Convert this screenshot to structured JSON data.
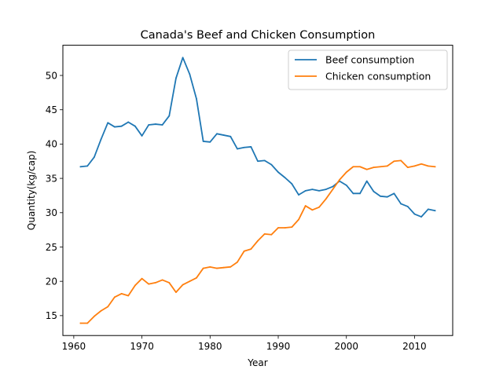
{
  "chart_data": {
    "type": "line",
    "title": "Canada's Beef and Chicken Consumption",
    "xlabel": "Year",
    "ylabel": "Quantity(kg/cap)",
    "xlim": [
      1958.4,
      2015.6
    ],
    "ylim": [
      12.1,
      54.4
    ],
    "xticks": [
      1960,
      1970,
      1980,
      1990,
      2000,
      2010
    ],
    "yticks": [
      15,
      20,
      25,
      30,
      35,
      40,
      45,
      50
    ],
    "grid": false,
    "legend_position": "top-right",
    "x": [
      1961,
      1962,
      1963,
      1964,
      1965,
      1966,
      1967,
      1968,
      1969,
      1970,
      1971,
      1972,
      1973,
      1974,
      1975,
      1976,
      1977,
      1978,
      1979,
      1980,
      1981,
      1982,
      1983,
      1984,
      1985,
      1986,
      1987,
      1988,
      1989,
      1990,
      1991,
      1992,
      1993,
      1994,
      1995,
      1996,
      1997,
      1998,
      1999,
      2000,
      2001,
      2002,
      2003,
      2004,
      2005,
      2006,
      2007,
      2008,
      2009,
      2010,
      2011,
      2012,
      2013
    ],
    "series": [
      {
        "name": "Beef consumption",
        "color": "#1f77b4",
        "values": [
          36.7,
          36.8,
          38.1,
          40.7,
          43.1,
          42.5,
          42.6,
          43.2,
          42.6,
          41.2,
          42.8,
          42.9,
          42.8,
          44.1,
          49.6,
          52.6,
          50.2,
          46.6,
          40.4,
          40.3,
          41.5,
          41.3,
          41.1,
          39.3,
          39.5,
          39.6,
          37.5,
          37.6,
          37.0,
          35.9,
          35.1,
          34.2,
          32.6,
          33.2,
          33.4,
          33.2,
          33.4,
          33.8,
          34.6,
          34.0,
          32.8,
          32.8,
          34.6,
          33.1,
          32.4,
          32.3,
          32.8,
          31.3,
          30.9,
          29.8,
          29.4,
          30.5,
          30.3
        ]
      },
      {
        "name": "Chicken consumption",
        "color": "#ff7f0e",
        "values": [
          13.9,
          13.9,
          14.9,
          15.7,
          16.3,
          17.7,
          18.2,
          17.9,
          19.4,
          20.4,
          19.6,
          19.8,
          20.2,
          19.8,
          18.4,
          19.5,
          20.0,
          20.5,
          21.9,
          22.1,
          21.9,
          22.0,
          22.1,
          22.8,
          24.4,
          24.7,
          25.9,
          26.9,
          26.8,
          27.8,
          27.8,
          27.9,
          29.0,
          31.0,
          30.4,
          30.8,
          32.0,
          33.4,
          34.8,
          35.9,
          36.7,
          36.7,
          36.3,
          36.6,
          36.7,
          36.8,
          37.5,
          37.6,
          36.6,
          36.8,
          37.1,
          36.8,
          36.7
        ]
      }
    ]
  }
}
